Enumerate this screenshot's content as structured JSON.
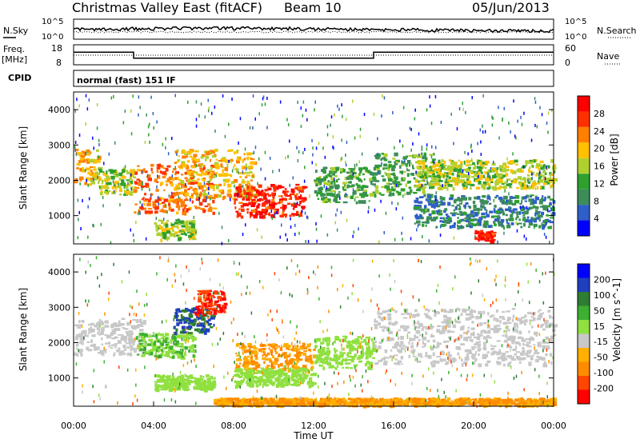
{
  "header": {
    "title": "Christmas Valley East (fitACF)",
    "beam": "Beam 10",
    "date": "05/Jun/2013"
  },
  "top_panels": {
    "nsky_label": "N.Sky",
    "nsky_ticks": [
      "10^5",
      "10^0"
    ],
    "nsearch_label": "N.Search",
    "nsearch_ticks": [
      "10^5",
      "10^0"
    ],
    "freq_label_1": "Freq.",
    "freq_label_2": "[MHz]",
    "freq_ticks": [
      "18",
      "8"
    ],
    "nave_label": "Nave",
    "nave_ticks": [
      "60",
      "0"
    ],
    "cpid_label": "CPID",
    "cpid_text": "normal (fast) 151 IF"
  },
  "colors": {
    "power_scale": [
      "#0000ff",
      "#2f5fc8",
      "#3c8d5a",
      "#2ea02e",
      "#b0d030",
      "#ffc000",
      "#ff8000",
      "#ff3000",
      "#ff0000"
    ],
    "velocity_scale": [
      "#ff0000",
      "#ff4500",
      "#ff8c00",
      "#ffb000",
      "#c8c8c8",
      "#90e040",
      "#3cb030",
      "#2e7d32",
      "#1f3fbf",
      "#0000ff"
    ]
  },
  "chart_data": [
    {
      "type": "heatmap",
      "name": "power-panel",
      "ylabel": "Slant Range [km]",
      "yticks": [
        "1000",
        "2000",
        "3000",
        "4000"
      ],
      "ylim": [
        200,
        4500
      ],
      "xlim": [
        0,
        24
      ],
      "colorbar_label": "Power [dB]",
      "colorbar_ticks": [
        "4",
        "8",
        "12",
        "16",
        "20",
        "24",
        "28"
      ],
      "colorbar_range": [
        0,
        32
      ],
      "features": [
        {
          "from": 0.0,
          "to": 1.2,
          "range": [
            1900,
            2900
          ],
          "value": 20
        },
        {
          "from": 1.2,
          "to": 3.0,
          "range": [
            1600,
            2400
          ],
          "value": 16
        },
        {
          "from": 3.0,
          "to": 7.0,
          "range": [
            1100,
            2500
          ],
          "value": 24
        },
        {
          "from": 5.0,
          "to": 9.0,
          "range": [
            1500,
            2900
          ],
          "value": 20
        },
        {
          "from": 8.0,
          "to": 11.5,
          "range": [
            1000,
            1900
          ],
          "value": 28
        },
        {
          "from": 4.0,
          "to": 6.0,
          "range": [
            350,
            900
          ],
          "value": 16
        },
        {
          "from": 12.0,
          "to": 15.0,
          "range": [
            1400,
            2400
          ],
          "value": 12
        },
        {
          "from": 15.0,
          "to": 18.0,
          "range": [
            1600,
            2800
          ],
          "value": 12
        },
        {
          "from": 17.0,
          "to": 24.0,
          "range": [
            1800,
            2600
          ],
          "value": 16
        },
        {
          "from": 17.0,
          "to": 24.0,
          "range": [
            700,
            1600
          ],
          "value": 8
        },
        {
          "from": 20.0,
          "to": 21.0,
          "range": [
            300,
            600
          ],
          "value": 28
        }
      ]
    },
    {
      "type": "heatmap",
      "name": "velocity-panel",
      "ylabel": "Slant Range [km]",
      "yticks": [
        "1000",
        "2000",
        "3000",
        "4000"
      ],
      "ylim": [
        200,
        4500
      ],
      "xlabel": "Time UT",
      "xticks": [
        "00:00",
        "04:00",
        "08:00",
        "12:00",
        "16:00",
        "20:00",
        "00:00"
      ],
      "xlim": [
        0,
        24
      ],
      "colorbar_label": "Velocity [m s^-1]",
      "colorbar_ticks": [
        "200",
        "100",
        "50",
        "15",
        "-15",
        "-50",
        "-100",
        "-200"
      ],
      "features": [
        {
          "from": 0.0,
          "to": 3.5,
          "range": [
            1700,
            2700
          ],
          "value": 0
        },
        {
          "from": 3.0,
          "to": 6.0,
          "range": [
            1600,
            2300
          ],
          "value": 50
        },
        {
          "from": 5.0,
          "to": 7.0,
          "range": [
            2300,
            3000
          ],
          "value": 200
        },
        {
          "from": 6.0,
          "to": 7.5,
          "range": [
            2800,
            3500
          ],
          "value": -200
        },
        {
          "from": 8.0,
          "to": 12.0,
          "range": [
            1200,
            2000
          ],
          "value": -50
        },
        {
          "from": 8.0,
          "to": 12.0,
          "range": [
            800,
            1300
          ],
          "value": 30
        },
        {
          "from": 4.0,
          "to": 7.0,
          "range": [
            700,
            1100
          ],
          "value": 30
        },
        {
          "from": 12.0,
          "to": 15.0,
          "range": [
            1300,
            2200
          ],
          "value": 30
        },
        {
          "from": 15.0,
          "to": 24.0,
          "range": [
            1400,
            3000
          ],
          "value": 0
        },
        {
          "from": 7.0,
          "to": 24.0,
          "range": [
            250,
            450
          ],
          "value": -50
        }
      ]
    },
    {
      "type": "line",
      "name": "frequency-panel",
      "ylabel": "Freq. [MHz]",
      "x": [
        0,
        3,
        3,
        15,
        15,
        24
      ],
      "y": [
        14.3,
        14.3,
        11.3,
        11.3,
        14.3,
        14.3
      ]
    }
  ]
}
